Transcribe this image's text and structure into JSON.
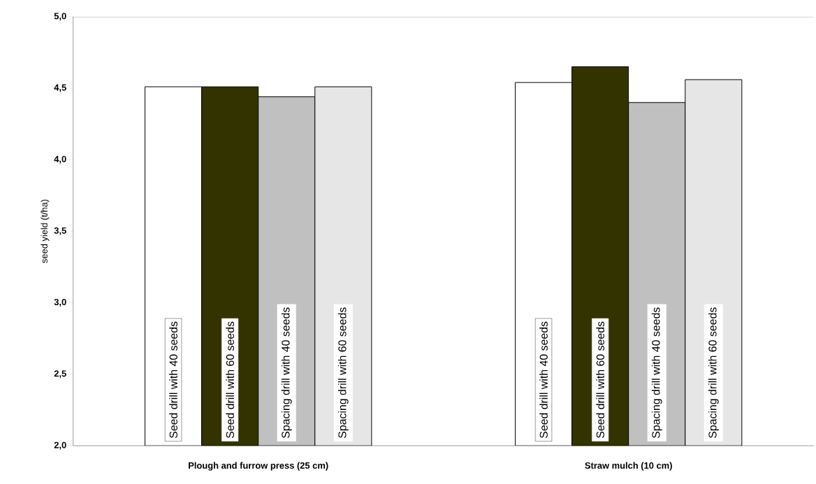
{
  "chart_data": {
    "type": "bar",
    "ylabel": "seed yield (t/ha)",
    "categories": [
      "Plough and furrow press (25 cm)",
      "Straw mulch (10 cm)"
    ],
    "series": [
      {
        "name": "Seed drill with 40 seeds",
        "color": "#ffffff",
        "values": [
          4.51,
          4.54
        ]
      },
      {
        "name": "Seed drill with 60 seeds",
        "color": "#333300",
        "values": [
          4.51,
          4.65
        ]
      },
      {
        "name": "Spacing drill with 40 seeds",
        "color": "#c0c0c0",
        "values": [
          4.44,
          4.4
        ]
      },
      {
        "name": "Spacing drill with 60 seeds",
        "color": "#e6e6e6",
        "values": [
          4.51,
          4.56
        ]
      }
    ],
    "ylim": [
      2.0,
      5.0
    ],
    "yticks": [
      {
        "value": 2.0,
        "label": "2,0"
      },
      {
        "value": 2.5,
        "label": "2,5"
      },
      {
        "value": 3.0,
        "label": "3,0"
      },
      {
        "value": 3.5,
        "label": "3,5"
      },
      {
        "value": 4.0,
        "label": "4,0"
      },
      {
        "value": 4.5,
        "label": "4,5"
      },
      {
        "value": 5.0,
        "label": "5,0"
      }
    ],
    "grid": false
  }
}
